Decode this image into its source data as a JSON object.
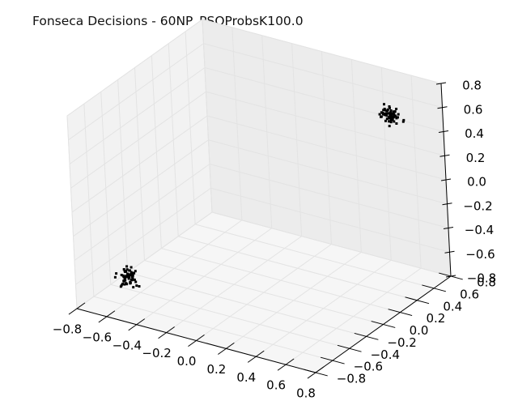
{
  "chart_data": {
    "type": "scatter",
    "projection": "3d",
    "title": "Fonseca Decisions - 60NP_PSOProbsK100.0",
    "xlabel": "",
    "ylabel": "",
    "zlabel": "",
    "grid": true,
    "xlim": [
      -0.8,
      0.8
    ],
    "ylim": [
      -0.8,
      0.8
    ],
    "zlim": [
      -0.8,
      0.8
    ],
    "x_ticks": [
      -0.8,
      -0.6,
      -0.4,
      -0.2,
      0.0,
      0.2,
      0.4,
      0.6,
      0.8
    ],
    "y_ticks": [
      -0.8,
      -0.6,
      -0.4,
      -0.2,
      0.0,
      0.2,
      0.4,
      0.6,
      0.8
    ],
    "z_ticks": [
      -0.8,
      -0.6,
      -0.4,
      -0.2,
      0.0,
      0.2,
      0.4,
      0.6,
      0.8
    ],
    "x_tick_labels": [
      "−0.8",
      "−0.6",
      "−0.4",
      "−0.2",
      "0.0",
      "0.2",
      "0.4",
      "0.6",
      "0.8"
    ],
    "y_tick_labels": [
      "−0.8",
      "−0.6",
      "−0.4",
      "−0.2",
      "0.0",
      "0.2",
      "0.4",
      "0.6",
      "0.8"
    ],
    "z_tick_labels": [
      "−0.8",
      "−0.6",
      "−0.4",
      "−0.2",
      "0.0",
      "0.2",
      "0.4",
      "0.6",
      "0.8"
    ],
    "marker_color": "#000000",
    "clusters": [
      {
        "center": [
          -0.577,
          -0.577,
          -0.577
        ],
        "spread": 0.06,
        "count": 60
      },
      {
        "center": [
          0.577,
          0.577,
          0.577
        ],
        "spread": 0.06,
        "count": 60
      }
    ]
  }
}
